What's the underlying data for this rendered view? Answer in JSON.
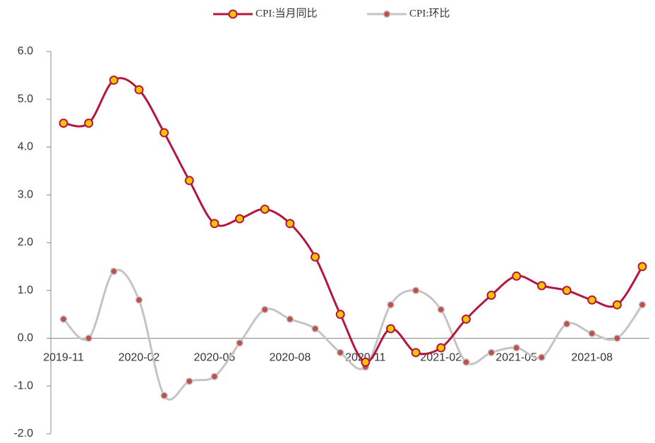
{
  "chart_data": {
    "type": "line",
    "legend": "top",
    "smooth": true,
    "categories": [
      "2019-11",
      null,
      null,
      "2020-02",
      null,
      null,
      "2020-05",
      null,
      null,
      "2020-08",
      null,
      null,
      "2020-11",
      null,
      null,
      "2021-02",
      null,
      null,
      "2021-05",
      null,
      null,
      "2021-08",
      null,
      null
    ],
    "series": [
      {
        "name": "CPI:当月同比",
        "color": "#b5173c",
        "marker_color": "#f5c400",
        "values": [
          4.5,
          4.5,
          5.4,
          5.2,
          4.3,
          3.3,
          2.4,
          2.5,
          2.7,
          2.4,
          1.7,
          0.5,
          -0.5,
          0.2,
          -0.3,
          -0.2,
          0.4,
          0.9,
          1.3,
          1.1,
          1.0,
          0.8,
          0.7,
          1.5
        ]
      },
      {
        "name": "CPI:环比",
        "color": "#c4c4c4",
        "marker_color": "#c0504d",
        "values": [
          0.4,
          0.0,
          1.4,
          0.8,
          -1.2,
          -0.9,
          -0.8,
          -0.1,
          0.6,
          0.4,
          0.2,
          -0.3,
          -0.6,
          0.7,
          1.0,
          0.6,
          -0.5,
          -0.3,
          -0.2,
          -0.4,
          0.3,
          0.1,
          0.0,
          0.7
        ]
      }
    ],
    "ylim": [
      -2,
      6
    ],
    "yticks": [
      {
        "value": -2,
        "label": "-2.0"
      },
      {
        "value": -1,
        "label": "-1.0"
      },
      {
        "value": 0,
        "label": "0.0"
      },
      {
        "value": 1,
        "label": "1.0"
      },
      {
        "value": 2,
        "label": "2.0"
      },
      {
        "value": 3,
        "label": "3.0"
      },
      {
        "value": 4,
        "label": "4.0"
      },
      {
        "value": 5,
        "label": "5.0"
      },
      {
        "value": 6,
        "label": "6.0"
      }
    ]
  }
}
